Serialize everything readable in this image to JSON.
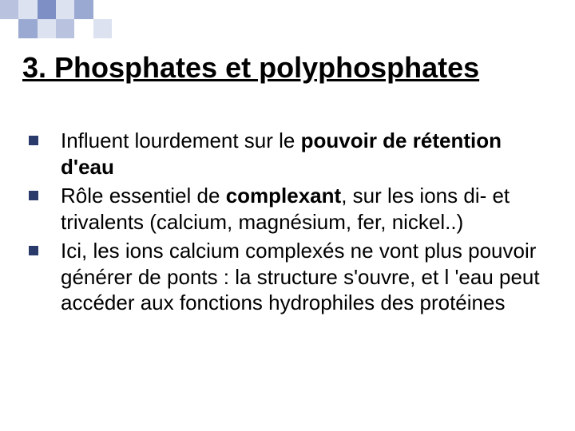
{
  "decoration": {
    "squares": [
      "#b9c3e0",
      "#dde2f0",
      "#7d8fc4",
      "#dde2f0",
      "#9aa9d2",
      "#ffffff",
      "#ffffff",
      "#9aa9d2",
      "#dde2f0",
      "#b9c3e0",
      "#ffffff",
      "#dde2f0"
    ]
  },
  "heading": {
    "text": "3. Phosphates et polyphosphates",
    "color": "#000000",
    "fontsize": 36
  },
  "bullets": {
    "marker_color": "#2a3a6b",
    "text_color": "#000000",
    "fontsize": 26,
    "items": [
      {
        "pre": "Influent lourdement sur le ",
        "bold": "pouvoir de rétention d'eau",
        "post": ""
      },
      {
        "pre": "Rôle essentiel de ",
        "bold": "complexant",
        "post": ", sur les ions di- et trivalents (calcium, magnésium, fer, nickel..)"
      },
      {
        "pre": "Ici, les ions calcium complexés ne vont plus pouvoir générer de ponts : la structure s'ouvre, et l 'eau peut accéder aux fonctions hydrophiles des protéines",
        "bold": "",
        "post": ""
      }
    ]
  }
}
